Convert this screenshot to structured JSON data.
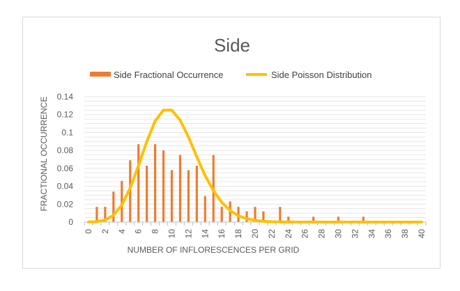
{
  "chart_data": {
    "type": "bar+line",
    "title": "Side",
    "xlabel": "NUMBER OF INFLORESCENCES PER GRID",
    "ylabel": "FRACTIONAL OCCURRENCE",
    "ylim": [
      0,
      0.14
    ],
    "yticks": [
      "0",
      "0.02",
      "0.04",
      "0.06",
      "0.08",
      "0.1",
      "0.12",
      "0.14"
    ],
    "xlim": [
      0,
      40
    ],
    "xticks": [
      "0",
      "2",
      "4",
      "6",
      "8",
      "10",
      "12",
      "14",
      "16",
      "18",
      "20",
      "22",
      "24",
      "26",
      "28",
      "30",
      "32",
      "34",
      "36",
      "38",
      "40"
    ],
    "grid": true,
    "legend_position": "top",
    "series": [
      {
        "name": "Side Fractional Occurrence",
        "kind": "bar",
        "color": "#ed7d31",
        "x": [
          0,
          1,
          2,
          3,
          4,
          5,
          6,
          7,
          8,
          9,
          10,
          11,
          12,
          13,
          14,
          15,
          16,
          17,
          18,
          19,
          20,
          21,
          22,
          23,
          24,
          25,
          26,
          27,
          28,
          29,
          30,
          31,
          32,
          33,
          34,
          35,
          36,
          37,
          38,
          39,
          40
        ],
        "values": [
          0,
          0.017,
          0.017,
          0.034,
          0.046,
          0.069,
          0.087,
          0.063,
          0.087,
          0.08,
          0.058,
          0.075,
          0.058,
          0.063,
          0.029,
          0.075,
          0.017,
          0.023,
          0.017,
          0.012,
          0.017,
          0.012,
          0,
          0.017,
          0.006,
          0,
          0,
          0.006,
          0,
          0,
          0.006,
          0,
          0,
          0.006,
          0,
          0,
          0,
          0,
          0,
          0,
          0
        ]
      },
      {
        "name": "Side Poisson Distribution",
        "kind": "line",
        "color": "#ffc000",
        "x": [
          0,
          1,
          2,
          3,
          4,
          5,
          6,
          7,
          8,
          9,
          10,
          11,
          12,
          13,
          14,
          15,
          16,
          17,
          18,
          19,
          20,
          21,
          22,
          23,
          24,
          25,
          26,
          27,
          28,
          29,
          30,
          31,
          32,
          33,
          34,
          35,
          36,
          37,
          38,
          39,
          40
        ],
        "values": [
          5e-05,
          0.0005,
          0.0023,
          0.0076,
          0.019,
          0.038,
          0.063,
          0.09,
          0.113,
          0.125,
          0.125,
          0.114,
          0.095,
          0.073,
          0.052,
          0.035,
          0.022,
          0.013,
          0.007,
          0.0037,
          0.0019,
          0.0009,
          0.0004,
          0.0002,
          0.0001,
          0,
          0,
          0,
          0,
          0,
          0,
          0,
          0,
          0,
          0,
          0,
          0,
          0,
          0,
          0,
          0
        ]
      }
    ]
  }
}
